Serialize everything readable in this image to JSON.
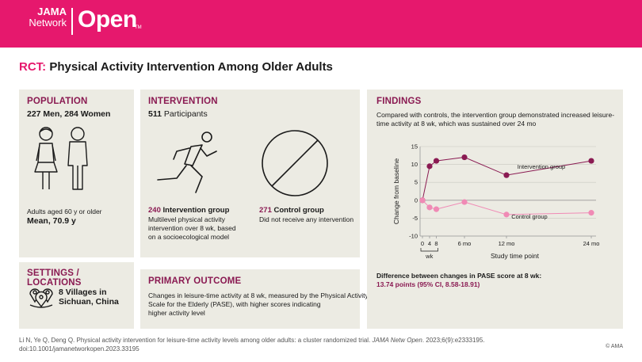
{
  "brand": {
    "line1": "JAMA",
    "line2": "Network",
    "open": "Open",
    "tm": "TM"
  },
  "title": {
    "accent": "RCT:",
    "rest": " Physical Activity Intervention Among Older Adults"
  },
  "population": {
    "heading": "POPULATION",
    "men_women": "227 Men, 284 Women",
    "age_desc": "Adults aged 60 y or older",
    "mean": "Mean, 70.9 y"
  },
  "settings": {
    "heading": "SETTINGS / LOCATIONS",
    "line1": "8 Villages in",
    "line2": "Sichuan, China"
  },
  "intervention": {
    "heading": "INTERVENTION",
    "participants_count": "511",
    "participants_label": " Participants",
    "ig_count": "240",
    "ig_label": " Intervention group",
    "ig_desc_1": "Multilevel physical activity",
    "ig_desc_2": "intervention over 8 wk, based",
    "ig_desc_3": "on a socioecological model",
    "cg_count": "271",
    "cg_label": " Control group",
    "cg_desc": "Did not receive any intervention"
  },
  "primary_outcome": {
    "heading": "PRIMARY OUTCOME",
    "line1": "Changes in leisure-time activity at 8 wk, measured by the Physical Activity",
    "line2": "Scale for the Elderly (PASE), with higher scores indicating",
    "line3": "higher activity level"
  },
  "findings": {
    "heading": "FINDINGS",
    "line1": "Compared with controls, the intervention group demonstrated increased leisure-",
    "line2": "time activity at 8 wk, which was sustained over 24 mo",
    "diff_label": "Difference between changes in PASE score at 8 wk:",
    "diff_value": "13.74 points (95% CI, 8.58-18.91)"
  },
  "chart_data": {
    "type": "line",
    "xlabel": "Study time point",
    "ylabel": "Change from baseline",
    "ylim": [
      -10,
      15
    ],
    "yticks": [
      "15",
      "10",
      "5",
      "0",
      "-5",
      "-10"
    ],
    "x_ticks": [
      "0",
      "4",
      "8",
      "6 mo",
      "12 mo",
      "24 mo"
    ],
    "wk_label": "wk",
    "grid": true,
    "series": [
      {
        "name": "Intervention group",
        "color": "#8a1a52",
        "values": [
          0,
          9.5,
          11,
          12,
          7,
          11
        ]
      },
      {
        "name": "Control group",
        "color": "#f08ab5",
        "values": [
          0,
          -2,
          -2.5,
          -0.5,
          -4,
          -3.5
        ]
      }
    ]
  },
  "citation": {
    "line1_a": "Li N, Ye Q, Deng Q. Physical activity intervention for leisure-time activity levels among older adults: a cluster randomized trial. ",
    "line1_b": "JAMA Netw Open",
    "line1_c": ". 2023;6(9):e2333195.",
    "line2": "doi:10.1001/jamanetworkopen.2023.33195",
    "copyright": "© AMA"
  },
  "colors": {
    "brand": "#e6186d",
    "accent": "#8a1a52",
    "panel": "#ecebe3",
    "control": "#f08ab5"
  }
}
